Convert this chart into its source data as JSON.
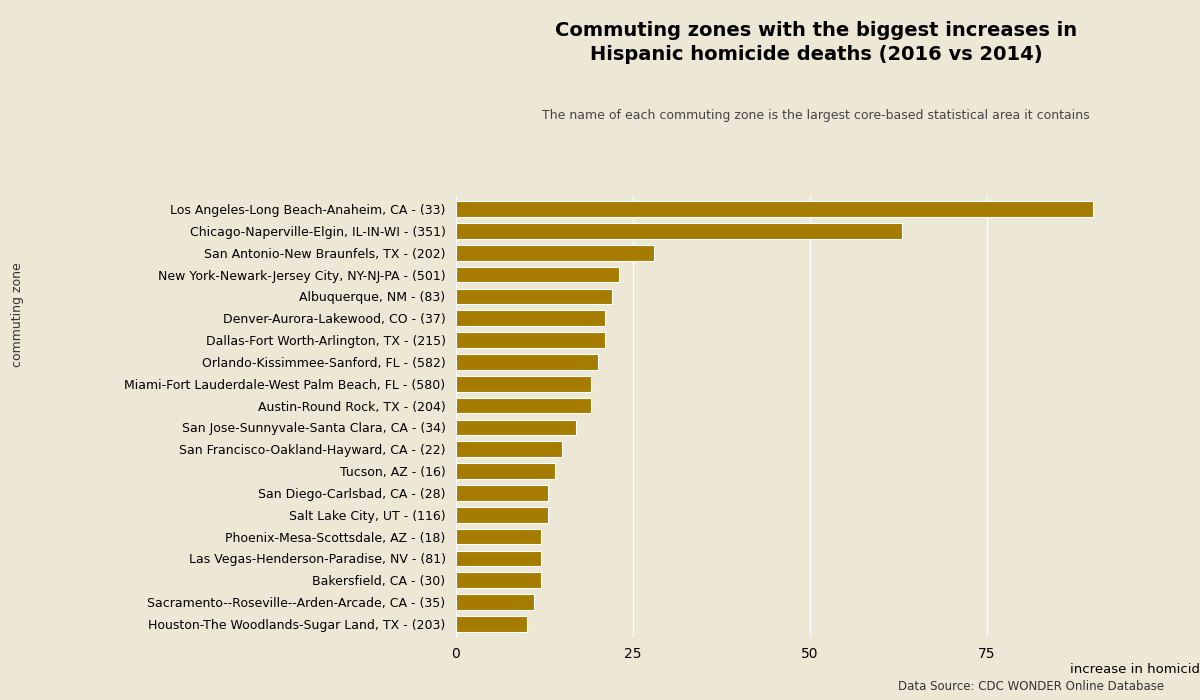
{
  "title": "Commuting zones with the biggest increases in\nHispanic homicide deaths (2016 vs 2014)",
  "subtitle": "The name of each commuting zone is the largest core-based statistical area it contains",
  "xlabel": "increase in homicide deaths",
  "ylabel": "commuting zone",
  "source": "Data Source: CDC WONDER Online Database",
  "bar_color": "#A67C00",
  "background_color": "#EDE8D5",
  "categories": [
    "Los Angeles-Long Beach-Anaheim, CA - (33)",
    "Chicago-Naperville-Elgin, IL-IN-WI - (351)",
    "San Antonio-New Braunfels, TX - (202)",
    "New York-Newark-Jersey City, NY-NJ-PA - (501)",
    "Albuquerque, NM - (83)",
    "Denver-Aurora-Lakewood, CO - (37)",
    "Dallas-Fort Worth-Arlington, TX - (215)",
    "Orlando-Kissimmee-Sanford, FL - (582)",
    "Miami-Fort Lauderdale-West Palm Beach, FL - (580)",
    "Austin-Round Rock, TX - (204)",
    "San Jose-Sunnyvale-Santa Clara, CA - (34)",
    "San Francisco-Oakland-Hayward, CA - (22)",
    "Tucson, AZ - (16)",
    "San Diego-Carlsbad, CA - (28)",
    "Salt Lake City, UT - (116)",
    "Phoenix-Mesa-Scottsdale, AZ - (18)",
    "Las Vegas-Henderson-Paradise, NV - (81)",
    "Bakersfield, CA - (30)",
    "Sacramento--Roseville--Arden-Arcade, CA - (35)",
    "Houston-The Woodlands-Sugar Land, TX - (203)"
  ],
  "values": [
    90,
    63,
    28,
    23,
    22,
    21,
    21,
    20,
    19,
    19,
    17,
    15,
    14,
    13,
    13,
    12,
    12,
    12,
    11,
    10
  ],
  "xlim": [
    0,
    100
  ],
  "xticks": [
    0,
    25,
    50,
    75
  ]
}
